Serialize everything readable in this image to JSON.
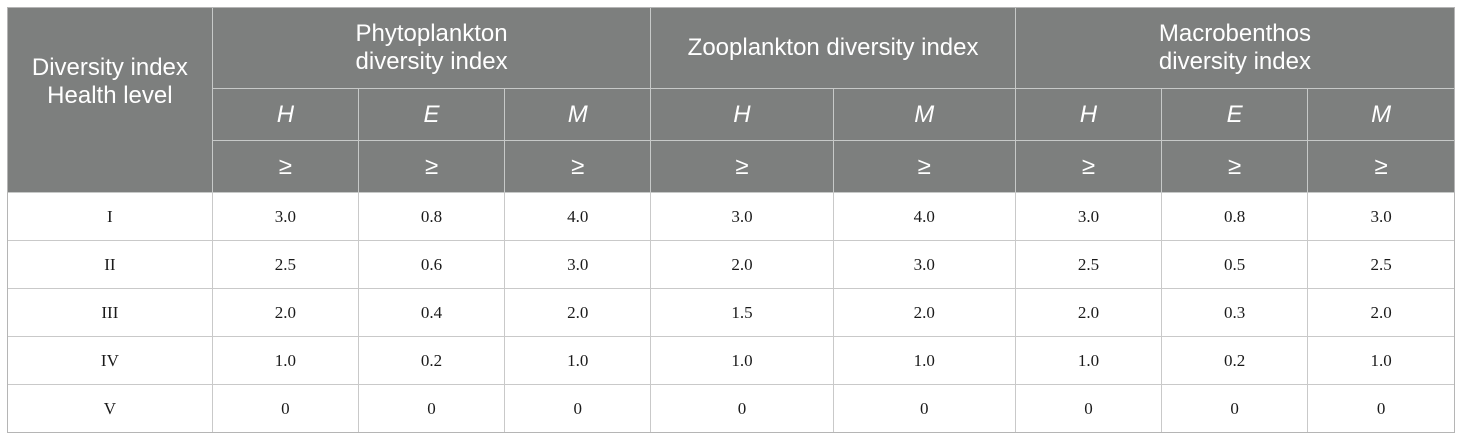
{
  "table": {
    "corner_label_line1": "Diversity index",
    "corner_label_line2": "Health level",
    "groups": [
      {
        "line1": "Phytoplankton",
        "line2": "diversity index"
      },
      {
        "line1": "Zooplankton diversity index",
        "line2": ""
      },
      {
        "line1": "Macrobenthos",
        "line2": "diversity index"
      }
    ],
    "metrics": [
      "H",
      "E",
      "M",
      "H",
      "M",
      "H",
      "E",
      "M"
    ],
    "operators": [
      "≥",
      "≥",
      "≥",
      "≥",
      "≥",
      "≥",
      "≥",
      "≥"
    ],
    "rows": [
      {
        "level": "I",
        "values": [
          "3.0",
          "0.8",
          "4.0",
          "3.0",
          "4.0",
          "3.0",
          "0.8",
          "3.0"
        ]
      },
      {
        "level": "II",
        "values": [
          "2.5",
          "0.6",
          "3.0",
          "2.0",
          "3.0",
          "2.5",
          "0.5",
          "2.5"
        ]
      },
      {
        "level": "III",
        "values": [
          "2.0",
          "0.4",
          "2.0",
          "1.5",
          "2.0",
          "2.0",
          "0.3",
          "2.0"
        ]
      },
      {
        "level": "IV",
        "values": [
          "1.0",
          "0.2",
          "1.0",
          "1.0",
          "1.0",
          "1.0",
          "0.2",
          "1.0"
        ]
      },
      {
        "level": "V",
        "values": [
          "0",
          "0",
          "0",
          "0",
          "0",
          "0",
          "0",
          "0"
        ]
      }
    ]
  },
  "colors": {
    "header_background": "#7d7f7e",
    "header_text": "#ffffff",
    "grid_line": "#c9c9c9"
  }
}
